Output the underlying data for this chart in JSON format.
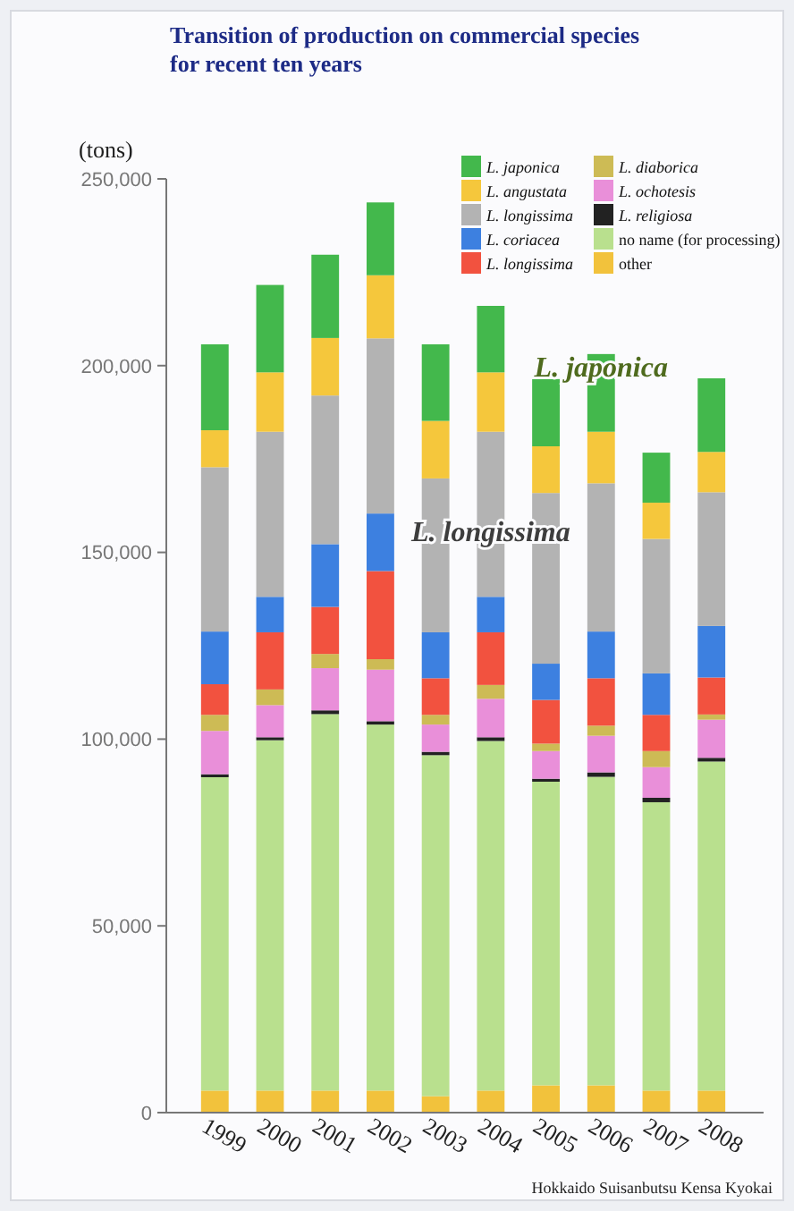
{
  "chart_data": {
    "type": "bar",
    "stacked": true,
    "title": "Transition of production on commercial species\nfor recent ten years",
    "ylabel": "(tons)",
    "categories": [
      "1999",
      "2000",
      "2001",
      "2002",
      "2003",
      "2004",
      "2005",
      "2006",
      "2007",
      "2008"
    ],
    "ylim": [
      0,
      250000
    ],
    "yticks": [
      {
        "value": 0,
        "label": "0"
      },
      {
        "value": 50000,
        "label": "50,000"
      },
      {
        "value": 100000,
        "label": "100,000"
      },
      {
        "value": 150000,
        "label": "150,000"
      },
      {
        "value": 200000,
        "label": "200,000"
      },
      {
        "value": 250000,
        "label": "250,000"
      }
    ],
    "legend": "top right",
    "series": [
      {
        "name": "other",
        "color": "#f2c23c",
        "values": [
          5900,
          5900,
          5900,
          5900,
          4400,
          5900,
          7300,
          7300,
          5900,
          5900
        ]
      },
      {
        "name": "no name (for processing)",
        "color": "#b9e08e",
        "values": [
          83900,
          93800,
          100800,
          98000,
          91300,
          93600,
          81300,
          82600,
          77200,
          88100
        ]
      },
      {
        "name": "L. religiosa",
        "color": "#222222",
        "values": [
          800,
          800,
          1000,
          900,
          900,
          1000,
          800,
          1200,
          1200,
          1000
        ]
      },
      {
        "name": "L. ochotesis",
        "color": "#e98fd9",
        "values": [
          11600,
          8600,
          11300,
          13800,
          7300,
          10300,
          7400,
          9800,
          8200,
          10200
        ]
      },
      {
        "name": "L. diaborica",
        "color": "#cdbb55",
        "values": [
          4300,
          4200,
          3800,
          2800,
          2600,
          3700,
          2000,
          2700,
          4300,
          1400
        ]
      },
      {
        "name": "L. longissima",
        "color": "#f2523f",
        "values": [
          8200,
          15300,
          12600,
          23600,
          9800,
          14100,
          11700,
          12700,
          9700,
          9900
        ]
      },
      {
        "name": "L. coriacea",
        "color": "#3d80e0",
        "values": [
          14100,
          9500,
          16800,
          15400,
          12300,
          9500,
          9700,
          12500,
          11100,
          13800
        ]
      },
      {
        "name": "L. longissima",
        "color": "#b3b3b3",
        "values": [
          44000,
          44200,
          39800,
          46900,
          41200,
          44200,
          45700,
          39700,
          36000,
          35800
        ]
      },
      {
        "name": "L. angustata",
        "color": "#f5c73c",
        "values": [
          9900,
          15900,
          15400,
          16900,
          15400,
          15900,
          12500,
          13800,
          9700,
          10800
        ]
      },
      {
        "name": "L. japonica",
        "color": "#43b84c",
        "values": [
          23000,
          23400,
          22300,
          19500,
          20500,
          17800,
          18000,
          20800,
          13400,
          19700
        ]
      }
    ],
    "annotations": [
      {
        "text": "L. japonica",
        "x": "2006",
        "y": 197000
      },
      {
        "text": "L. longissima",
        "x": "2004",
        "y": 153000
      },
      "Hokkaido Suisanbutsu Kensa Kyokai"
    ]
  }
}
